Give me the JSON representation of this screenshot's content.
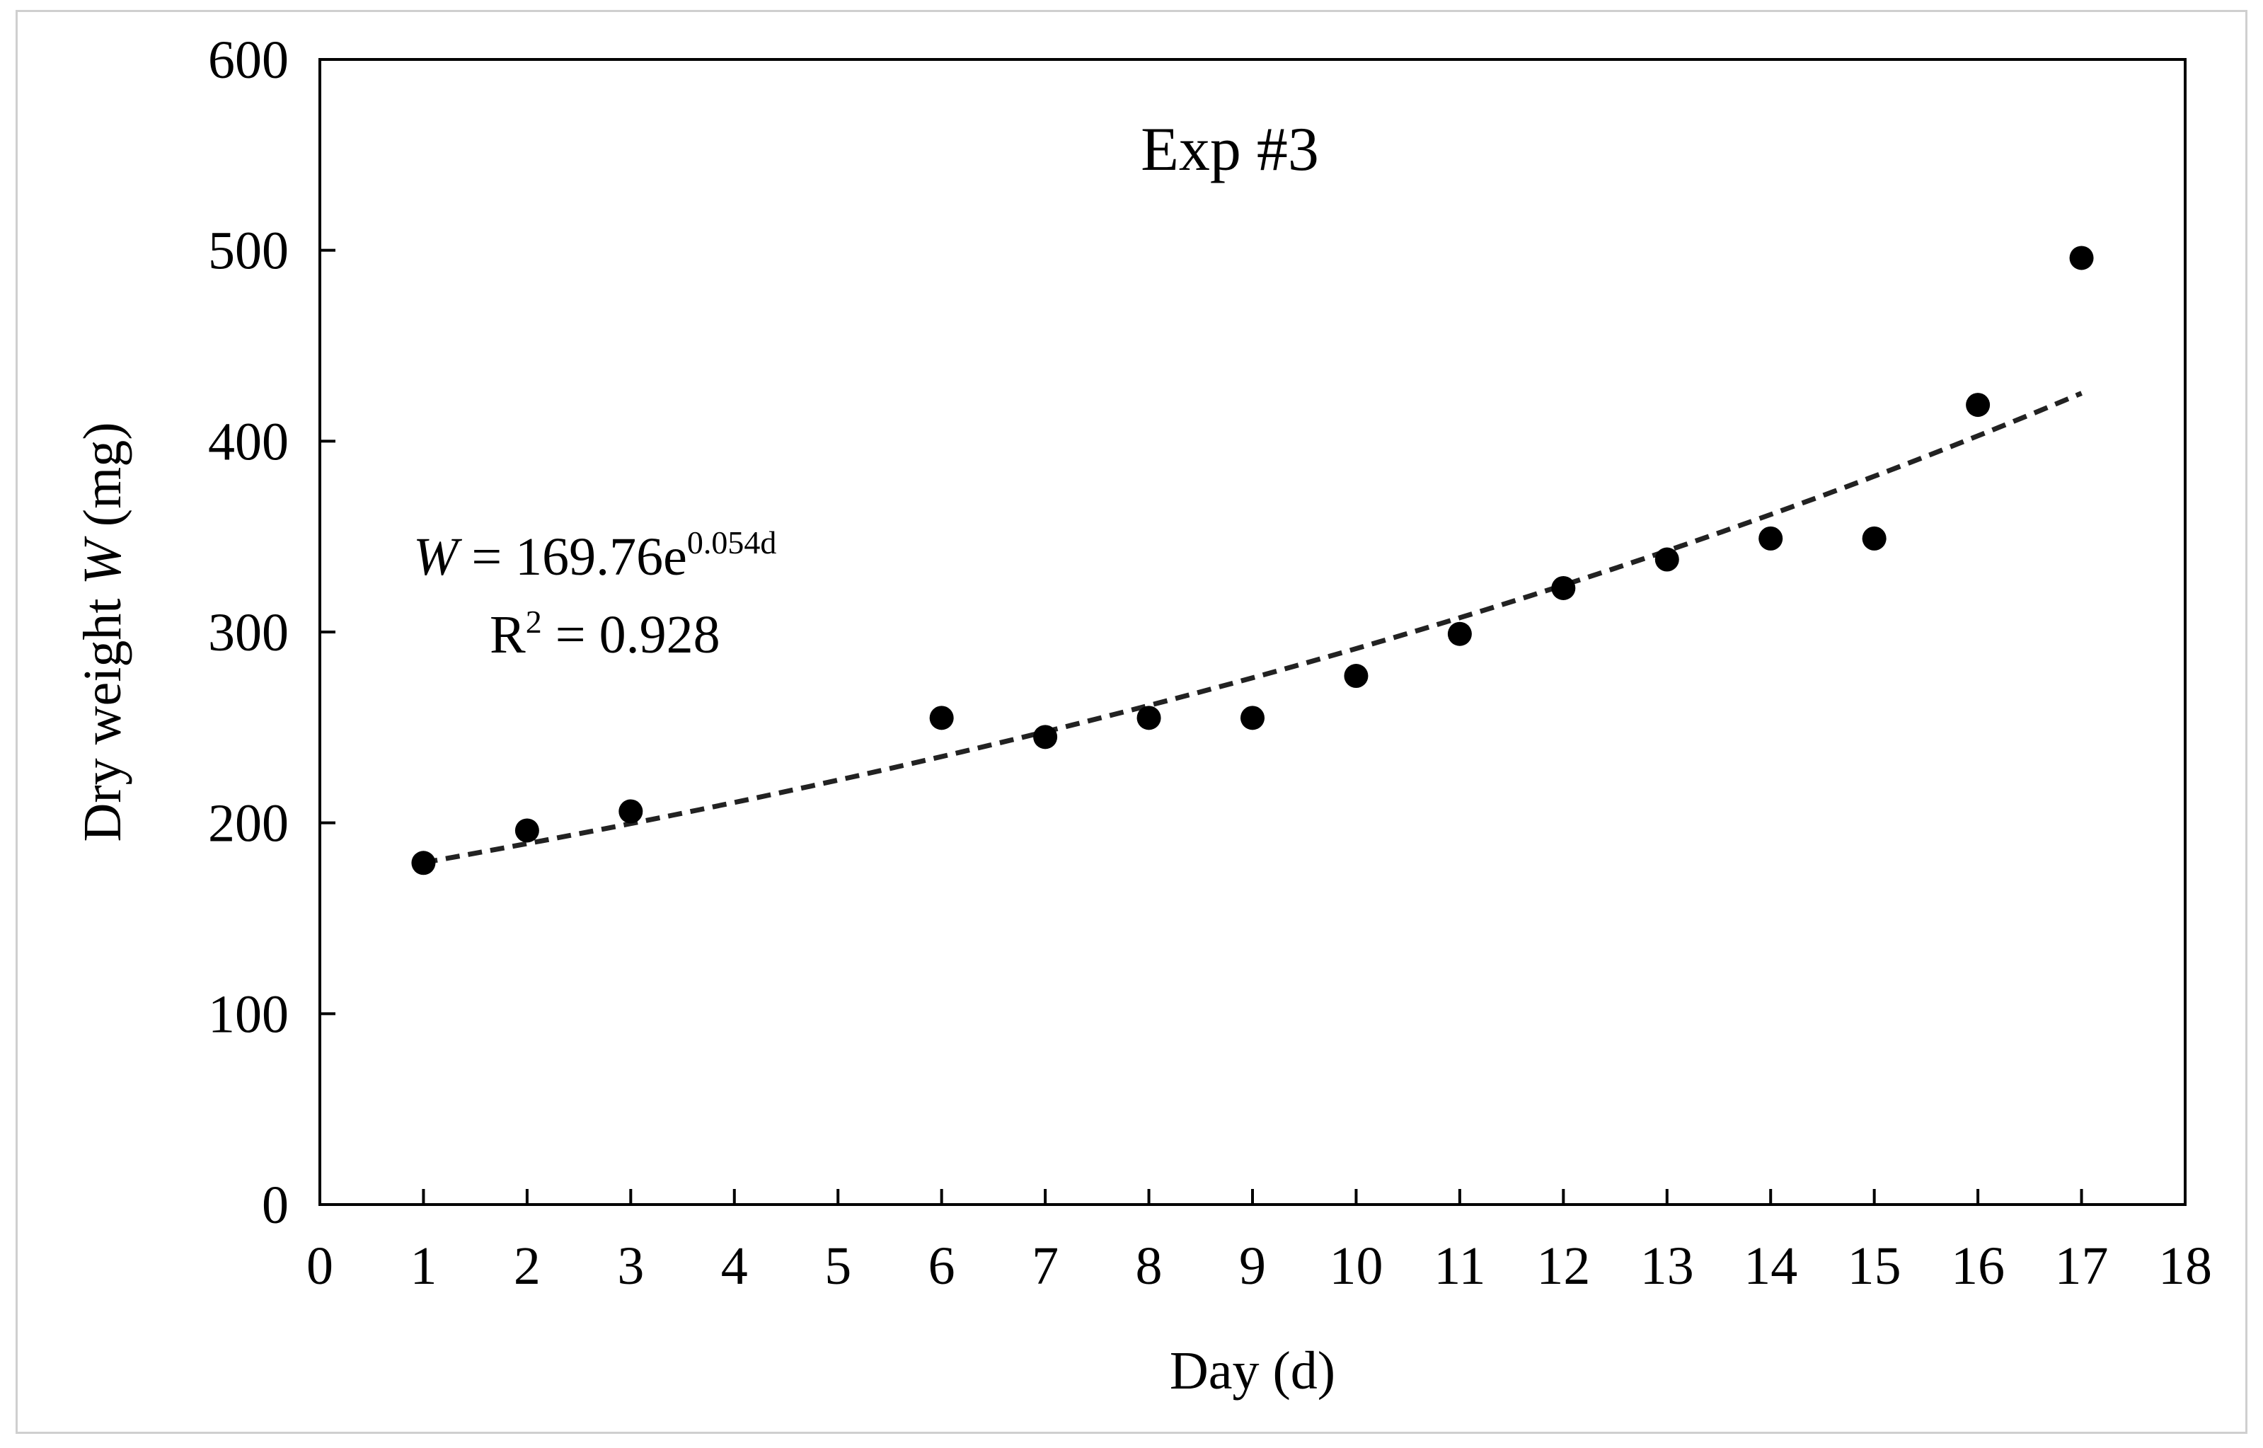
{
  "chart_data": {
    "type": "scatter",
    "title": "Exp #3",
    "xlabel": "Day (d)",
    "ylabel_prefix": "Dry weight ",
    "ylabel_var": "W",
    "ylabel_suffix": " (mg)",
    "xlim": [
      0,
      18
    ],
    "ylim": [
      0,
      600
    ],
    "x_ticks": [
      0,
      1,
      2,
      3,
      4,
      5,
      6,
      7,
      8,
      9,
      10,
      11,
      12,
      13,
      14,
      15,
      16,
      17,
      18
    ],
    "y_ticks": [
      0,
      100,
      200,
      300,
      400,
      500,
      600
    ],
    "grid": false,
    "series": [
      {
        "name": "Dry weight",
        "x": [
          1,
          2,
          3,
          6,
          7,
          8,
          9,
          10,
          11,
          12,
          13,
          14,
          15,
          16,
          17
        ],
        "y": [
          179,
          196,
          206,
          255,
          245,
          255,
          255,
          277,
          299,
          323,
          338,
          349,
          349,
          419,
          496
        ]
      }
    ],
    "trendline": {
      "type": "exponential",
      "style": "dashed",
      "a": 169.76,
      "b": 0.054,
      "x_range": [
        1,
        17
      ]
    },
    "annotation": {
      "var": "W",
      "eq_main": " = 169.76e",
      "eq_exp": "0.054d",
      "r2_base": "R",
      "r2_sup": "2",
      "r2_value": " = 0.928"
    },
    "colors": {
      "marker": "#000000",
      "trendline": "#222222",
      "axis": "#000000"
    }
  }
}
